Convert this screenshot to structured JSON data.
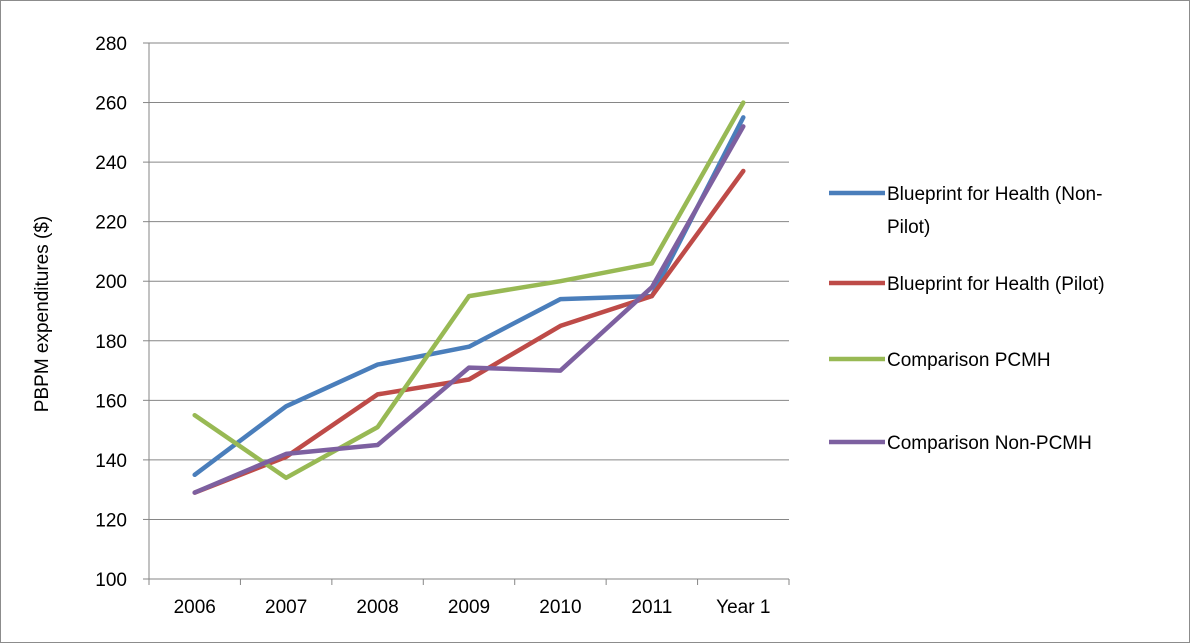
{
  "chart_data": {
    "type": "line",
    "title": "",
    "xlabel": "",
    "ylabel": "PBPM expenditures ($)",
    "categories": [
      "2006",
      "2007",
      "2008",
      "2009",
      "2010",
      "2011",
      "Year 1"
    ],
    "ylim": [
      100,
      280
    ],
    "yticks": [
      100,
      120,
      140,
      160,
      180,
      200,
      220,
      240,
      260,
      280
    ],
    "grid": "horizontal",
    "legend_position": "right",
    "series": [
      {
        "name": "Blueprint for Health (Non-Pilot)",
        "legend_lines": [
          "Blueprint for Health (Non-",
          "Pilot)"
        ],
        "color": "#4a7ebb",
        "values": [
          135,
          158,
          172,
          178,
          194,
          195,
          255
        ]
      },
      {
        "name": "Blueprint for Health (Pilot)",
        "legend_lines": [
          "Blueprint for Health (Pilot)"
        ],
        "color": "#be4b48",
        "values": [
          129,
          141,
          162,
          167,
          185,
          195,
          237
        ]
      },
      {
        "name": "Comparison PCMH",
        "legend_lines": [
          "Comparison PCMH"
        ],
        "color": "#98b954",
        "values": [
          155,
          134,
          151,
          195,
          200,
          206,
          260
        ]
      },
      {
        "name": "Comparison Non-PCMH",
        "legend_lines": [
          "Comparison Non-PCMH"
        ],
        "color": "#7d60a0",
        "values": [
          129,
          142,
          145,
          171,
          170,
          198,
          252
        ]
      }
    ]
  }
}
